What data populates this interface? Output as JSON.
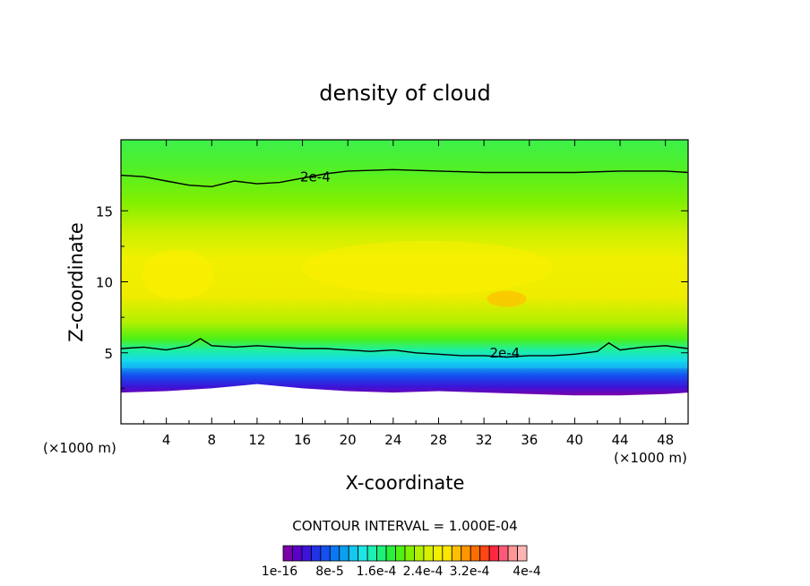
{
  "chart_data": {
    "type": "heatmap",
    "title": "density of cloud",
    "xlabel": "X-coordinate",
    "ylabel": "Z-coordinate",
    "x_unit_left": "(×1000 m)",
    "x_unit_right": "(×1000 m)",
    "xlim": [
      0,
      50
    ],
    "ylim": [
      0,
      20
    ],
    "x_ticks": [
      4,
      8,
      12,
      16,
      20,
      24,
      28,
      32,
      36,
      40,
      44,
      48
    ],
    "y_ticks": [
      5,
      10,
      15
    ],
    "x_tick_labels": [
      "4",
      "8",
      "12",
      "16",
      "20",
      "24",
      "28",
      "32",
      "36",
      "40",
      "44",
      "48"
    ],
    "y_tick_labels": [
      "5",
      "10",
      "15"
    ],
    "contour_interval_text": "CONTOUR INTERVAL = 1.000E-04",
    "contour_level": 0.0002,
    "contour_labels": [
      {
        "text": "2e-4",
        "x": 15.8,
        "z": 17.2
      },
      {
        "text": "2e-4",
        "x": 32.5,
        "z": 4.8
      }
    ],
    "upper_contour_z": [
      [
        0,
        17.5
      ],
      [
        2,
        17.4
      ],
      [
        4,
        17.1
      ],
      [
        6,
        16.8
      ],
      [
        8,
        16.7
      ],
      [
        10,
        17.1
      ],
      [
        12,
        16.9
      ],
      [
        14,
        17.0
      ],
      [
        16,
        17.3
      ],
      [
        18,
        17.6
      ],
      [
        20,
        17.8
      ],
      [
        24,
        17.9
      ],
      [
        28,
        17.8
      ],
      [
        32,
        17.7
      ],
      [
        36,
        17.7
      ],
      [
        40,
        17.7
      ],
      [
        44,
        17.8
      ],
      [
        48,
        17.8
      ],
      [
        50,
        17.7
      ]
    ],
    "lower_contour_z": [
      [
        0,
        5.3
      ],
      [
        2,
        5.4
      ],
      [
        4,
        5.2
      ],
      [
        6,
        5.5
      ],
      [
        7,
        6.0
      ],
      [
        8,
        5.5
      ],
      [
        10,
        5.4
      ],
      [
        12,
        5.5
      ],
      [
        14,
        5.4
      ],
      [
        16,
        5.3
      ],
      [
        18,
        5.3
      ],
      [
        20,
        5.2
      ],
      [
        22,
        5.1
      ],
      [
        24,
        5.2
      ],
      [
        26,
        5.0
      ],
      [
        28,
        4.9
      ],
      [
        30,
        4.8
      ],
      [
        32,
        4.8
      ],
      [
        34,
        4.7
      ],
      [
        36,
        4.8
      ],
      [
        38,
        4.8
      ],
      [
        40,
        4.9
      ],
      [
        42,
        5.1
      ],
      [
        43,
        5.7
      ],
      [
        44,
        5.2
      ],
      [
        46,
        5.4
      ],
      [
        48,
        5.5
      ],
      [
        50,
        5.3
      ]
    ],
    "cloud_base_z": [
      [
        0,
        2.2
      ],
      [
        4,
        2.3
      ],
      [
        8,
        2.5
      ],
      [
        12,
        2.8
      ],
      [
        16,
        2.5
      ],
      [
        20,
        2.3
      ],
      [
        24,
        2.2
      ],
      [
        28,
        2.3
      ],
      [
        32,
        2.2
      ],
      [
        36,
        2.1
      ],
      [
        40,
        2.0
      ],
      [
        44,
        2.0
      ],
      [
        48,
        2.1
      ],
      [
        50,
        2.2
      ]
    ],
    "colorbar": {
      "tick_labels": [
        "1e-16",
        "8e-5",
        "1.6e-4",
        "2.4e-4",
        "3.2e-4",
        "4e-4"
      ],
      "colors": [
        "#7a00a8",
        "#5a00c8",
        "#3c14d8",
        "#2232e6",
        "#1450f0",
        "#0a78f4",
        "#0aa0f0",
        "#14c8f0",
        "#1ee6e6",
        "#1ef0b4",
        "#1ef078",
        "#28f03c",
        "#50f014",
        "#82f000",
        "#b4f000",
        "#d8f000",
        "#f0f000",
        "#ffe600",
        "#ffbe00",
        "#ff9600",
        "#ff6e00",
        "#ff4614",
        "#ff2840",
        "#ff5a78",
        "#ff9696",
        "#ffb4b4"
      ]
    }
  }
}
